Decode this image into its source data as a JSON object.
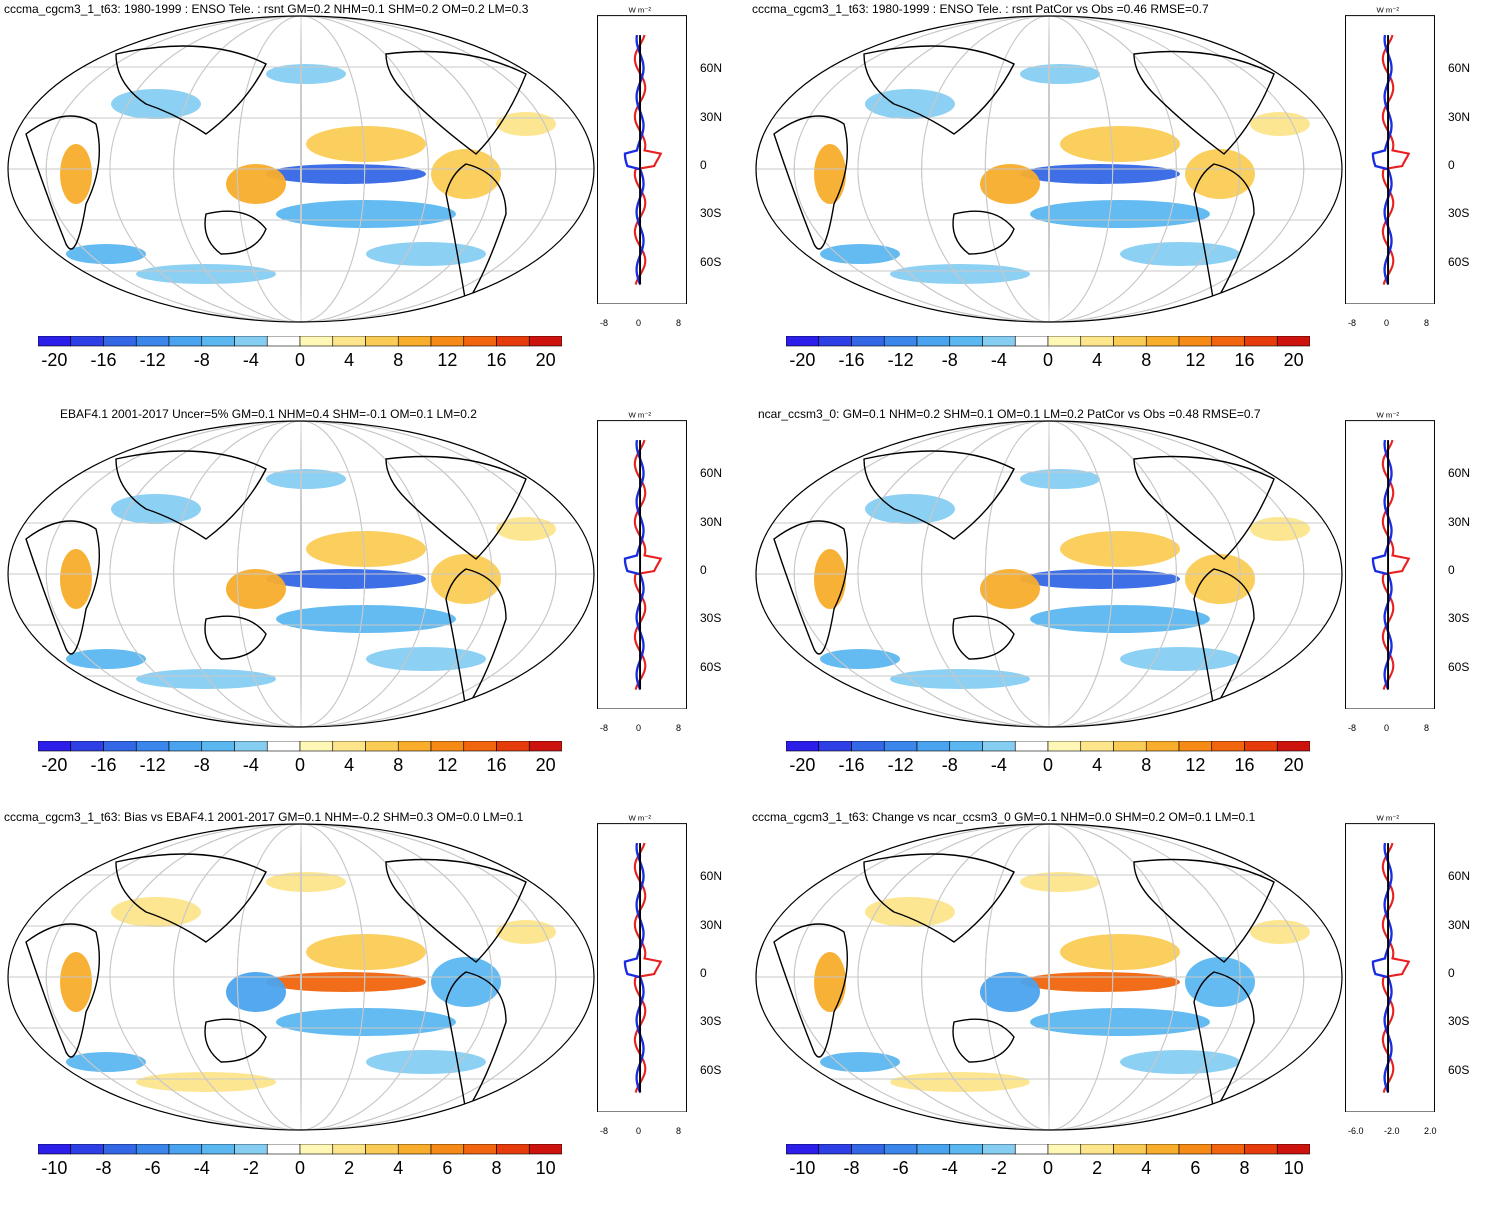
{
  "palette_blue_to_red": [
    "#2a1ee8",
    "#2f3fe6",
    "#3467e6",
    "#3b86ea",
    "#4aa3ee",
    "#5bb7f0",
    "#86cdf2",
    "#ffffff",
    "#fff7b5",
    "#fde58c",
    "#fbcc55",
    "#f8ad2c",
    "#f58b16",
    "#f0650e",
    "#e63c0c",
    "#cc130d"
  ],
  "colors": {
    "coast": "#000000",
    "grid": "#c8c8c8",
    "line_red": "#e82020",
    "line_blue": "#1a2ce0",
    "line_black": "#000000"
  },
  "panels": [
    {
      "id": "p1",
      "title": "cccma_cgcm3_1_t63: 1980-1999 : ENSO Tele. : rsnt GM=0.2 NHM=0.1 SHM=0.2 OM=0.2 LM=0.3",
      "unit": "W m⁻²",
      "lat_labels": [
        "60N",
        "30N",
        "0",
        "30S",
        "60S"
      ],
      "zonal_ticks": [
        "-8",
        "0",
        "8"
      ],
      "cbar_labels": [
        "-20",
        "-16",
        "-12",
        "-8",
        "-4",
        "0",
        "4",
        "8",
        "12",
        "16",
        "20"
      ]
    },
    {
      "id": "p2",
      "title": "cccma_cgcm3_1_t63: 1980-1999 : ENSO Tele. : rsnt PatCor vs Obs =0.46 RMSE=0.7",
      "unit": "W m⁻²",
      "lat_labels": [
        "60N",
        "30N",
        "0",
        "30S",
        "60S"
      ],
      "zonal_ticks": [
        "-8",
        "0",
        "8"
      ],
      "cbar_labels": [
        "-20",
        "-16",
        "-12",
        "-8",
        "-4",
        "0",
        "4",
        "8",
        "12",
        "16",
        "20"
      ]
    },
    {
      "id": "p3",
      "title": "EBAF4.1 2001-2017 Uncer=5% GM=0.1 NHM=0.4 SHM=-0.1 OM=0.1 LM=0.2",
      "unit": "W m⁻²",
      "lat_labels": [
        "60N",
        "30N",
        "0",
        "30S",
        "60S"
      ],
      "zonal_ticks": [
        "-8",
        "0",
        "8"
      ],
      "cbar_labels": [
        "-20",
        "-16",
        "-12",
        "-8",
        "-4",
        "0",
        "4",
        "8",
        "12",
        "16",
        "20"
      ]
    },
    {
      "id": "p4",
      "title": "ncar_ccsm3_0: GM=0.1 NHM=0.2 SHM=0.1 OM=0.1 LM=0.2 PatCor vs Obs =0.48 RMSE=0.7",
      "unit": "W m⁻²",
      "lat_labels": [
        "60N",
        "30N",
        "0",
        "30S",
        "60S"
      ],
      "zonal_ticks": [
        "-8",
        "0",
        "8"
      ],
      "cbar_labels": [
        "-20",
        "-16",
        "-12",
        "-8",
        "-4",
        "0",
        "4",
        "8",
        "12",
        "16",
        "20"
      ]
    },
    {
      "id": "p5",
      "title": "cccma_cgcm3_1_t63: Bias vs EBAF4.1 2001-2017 GM=0.1 NHM=-0.2 SHM=0.3 OM=0.0 LM=0.1",
      "unit": "W m⁻²",
      "lat_labels": [
        "60N",
        "30N",
        "0",
        "30S",
        "60S"
      ],
      "zonal_ticks": [
        "-8",
        "0",
        "8"
      ],
      "cbar_labels": [
        "-10",
        "-8",
        "-6",
        "-4",
        "-2",
        "0",
        "2",
        "4",
        "6",
        "8",
        "10"
      ]
    },
    {
      "id": "p6",
      "title": "cccma_cgcm3_1_t63: Change vs ncar_ccsm3_0 GM=0.1 NHM=0.0 SHM=0.2 OM=0.1 LM=0.1",
      "unit": "W m⁻²",
      "lat_labels": [
        "60N",
        "30N",
        "0",
        "30S",
        "60S"
      ],
      "zonal_ticks": [
        "-6.0",
        "-2.0",
        "2.0"
      ],
      "cbar_labels": [
        "-10",
        "-8",
        "-6",
        "-4",
        "-2",
        "0",
        "2",
        "4",
        "6",
        "8",
        "10"
      ]
    }
  ]
}
